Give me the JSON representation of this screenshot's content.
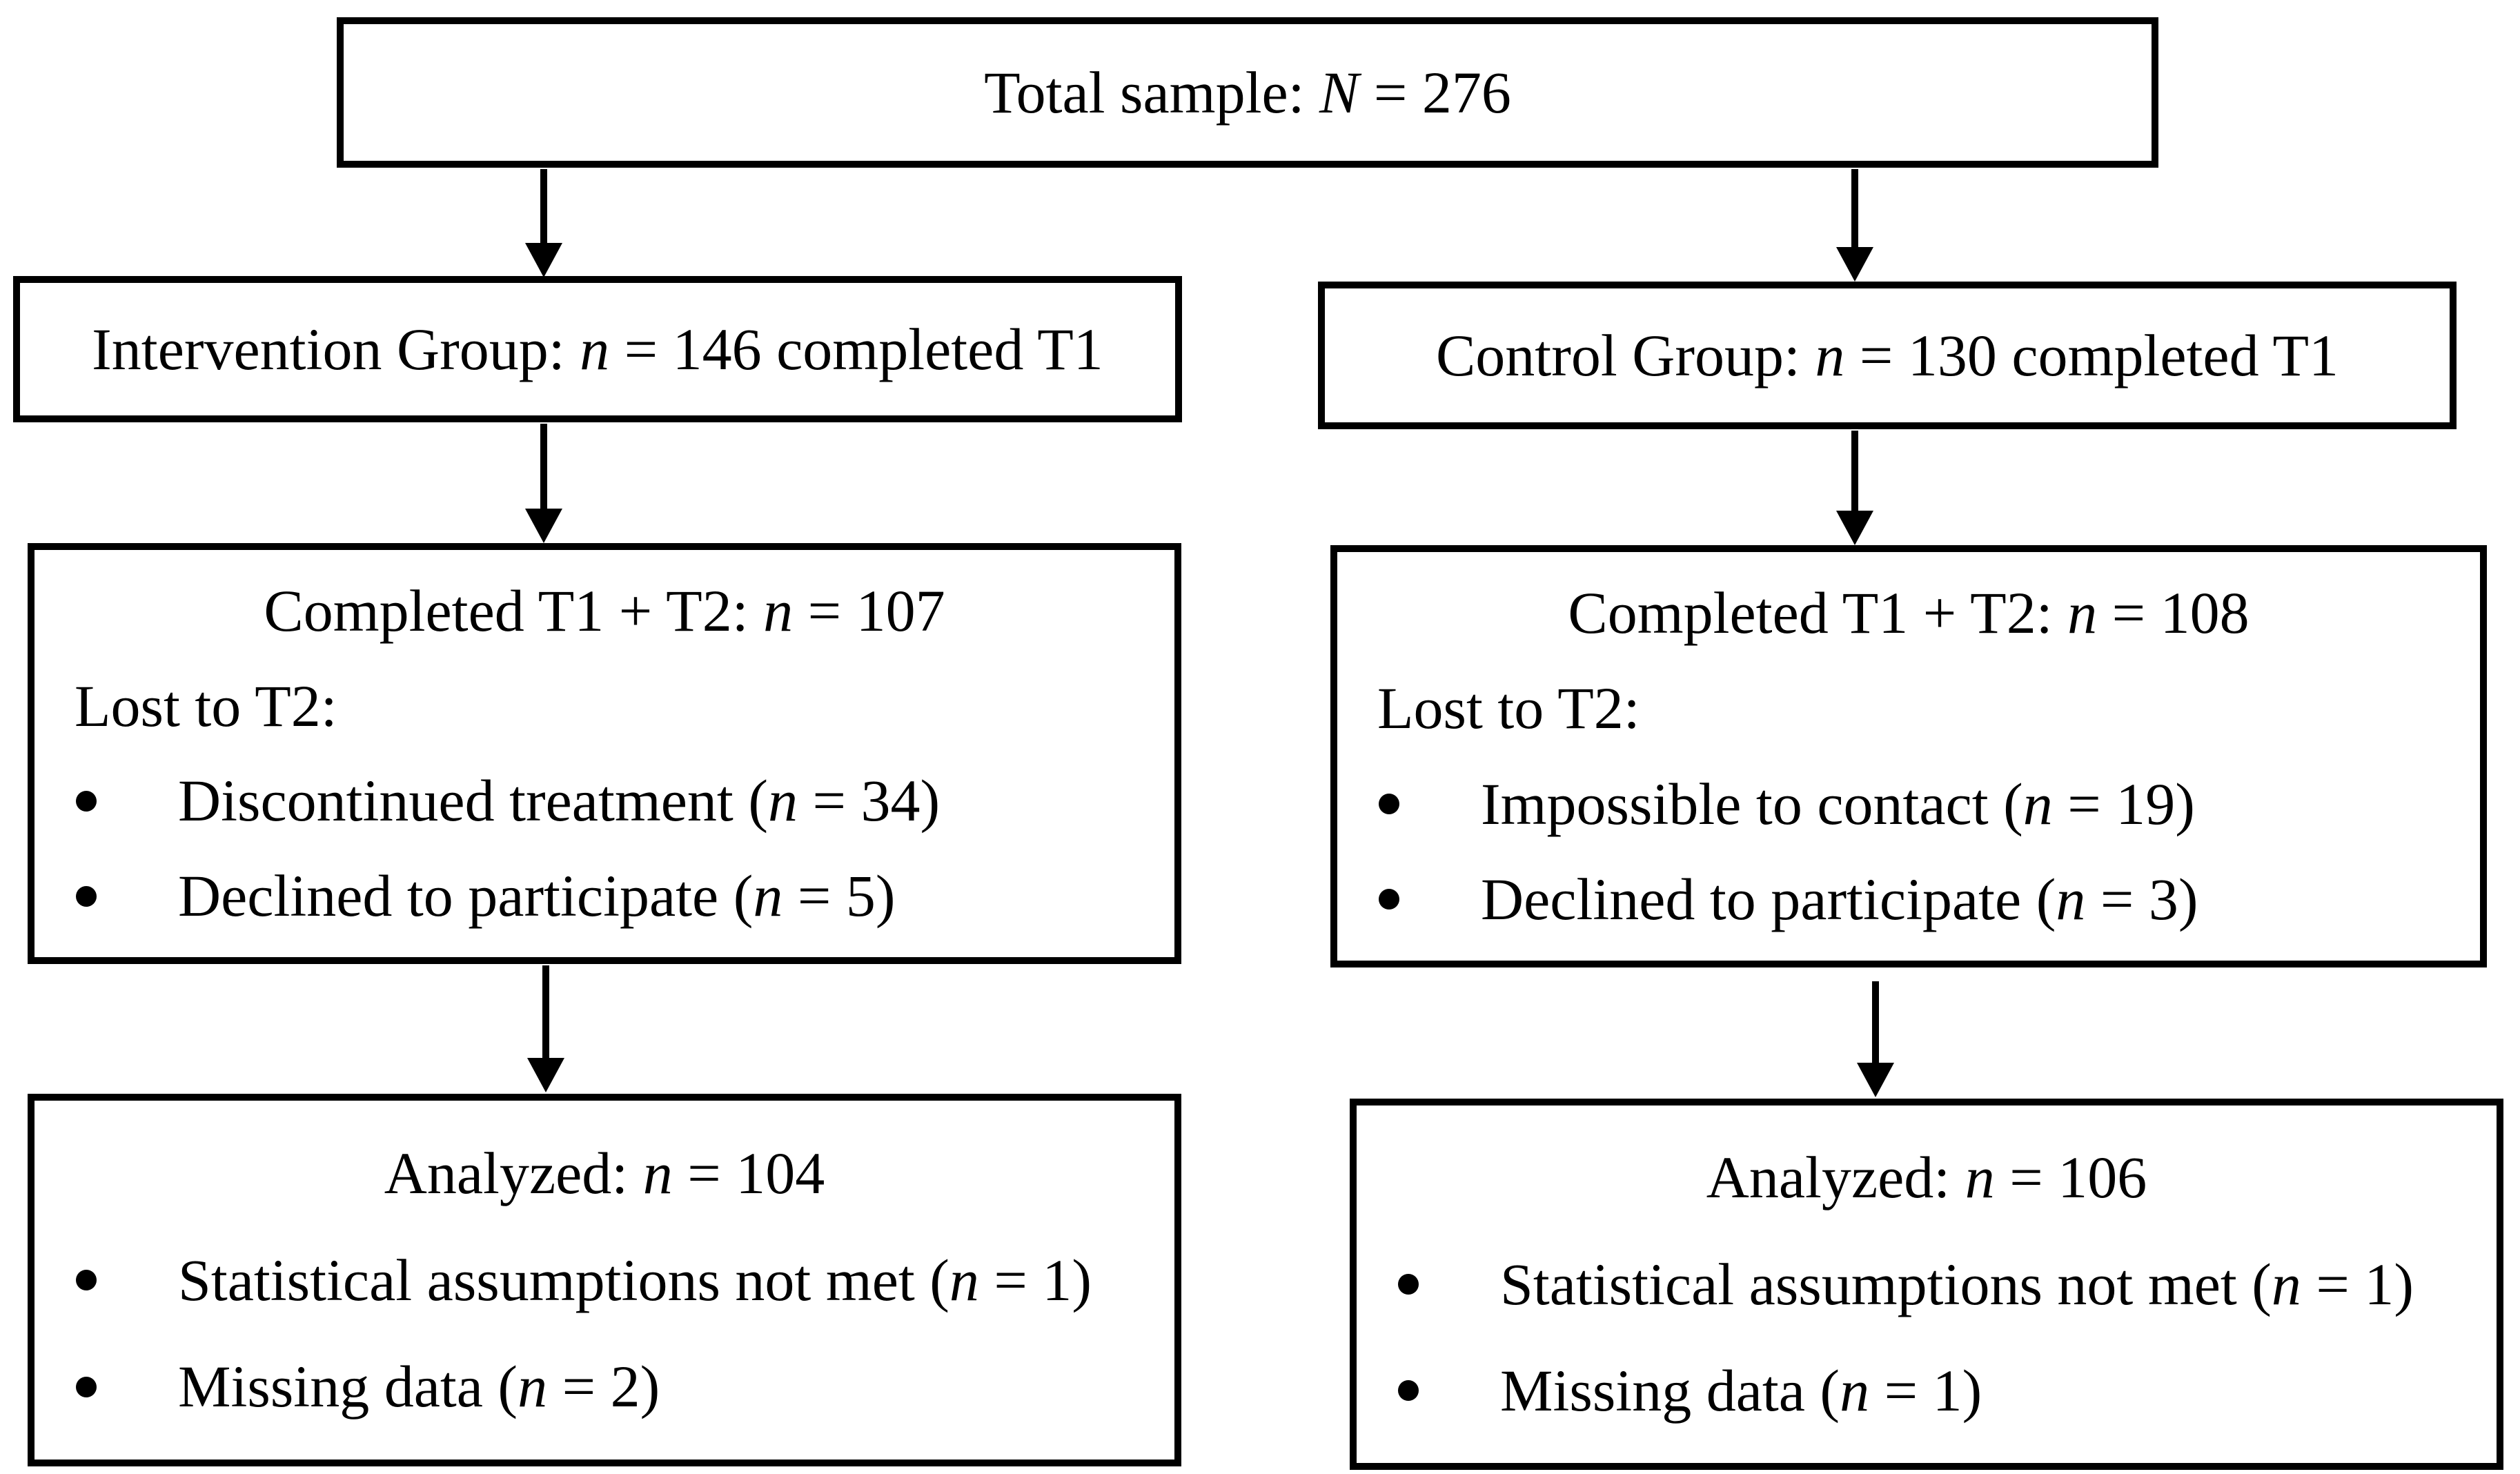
{
  "colors": {
    "ink": "#000000",
    "paper": "#ffffff"
  },
  "icons": {
    "connector": "arrow-down-icon",
    "list_marker": "bullet-dot-icon"
  },
  "total": {
    "pre": "Total sample: ",
    "var": "N",
    "post": " = 276"
  },
  "intervention": {
    "t1": {
      "pre": "Intervention Group: ",
      "var": "n",
      "post": " = 146 completed T1"
    },
    "t2": {
      "heading": {
        "pre": "Completed T1 + T2: ",
        "var": "n",
        "post": " = 107"
      },
      "lost": {
        "pre": "Lost to T2:",
        "var": "",
        "post": ""
      },
      "bullets": [
        {
          "pre": "Discontinued treatment (",
          "var": "n",
          "post": " = 34)"
        },
        {
          "pre": "Declined to participate (",
          "var": "n",
          "post": " = 5)"
        }
      ]
    },
    "analyzed": {
      "heading": {
        "pre": "Analyzed: ",
        "var": "n",
        "post": " = 104"
      },
      "bullets": [
        {
          "pre": "Statistical assumptions not met (",
          "var": "n",
          "post": " = 1)"
        },
        {
          "pre": "Missing data (",
          "var": "n",
          "post": " = 2)"
        }
      ]
    }
  },
  "control": {
    "t1": {
      "pre": "Control Group: ",
      "var": "n",
      "post": " = 130 completed T1"
    },
    "t2": {
      "heading": {
        "pre": "Completed T1 + T2: ",
        "var": "n",
        "post": " = 108"
      },
      "lost": {
        "pre": "Lost to T2:",
        "var": "",
        "post": ""
      },
      "bullets": [
        {
          "pre": "Impossible to contact (",
          "var": "n",
          "post": " = 19)"
        },
        {
          "pre": "Declined to participate (",
          "var": "n",
          "post": " = 3)"
        }
      ]
    },
    "analyzed": {
      "heading": {
        "pre": "Analyzed: ",
        "var": "n",
        "post": " = 106"
      },
      "bullets": [
        {
          "pre": "Statistical assumptions not met (",
          "var": "n",
          "post": " = 1)"
        },
        {
          "pre": "Missing data (",
          "var": "n",
          "post": " = 1)"
        }
      ]
    }
  }
}
